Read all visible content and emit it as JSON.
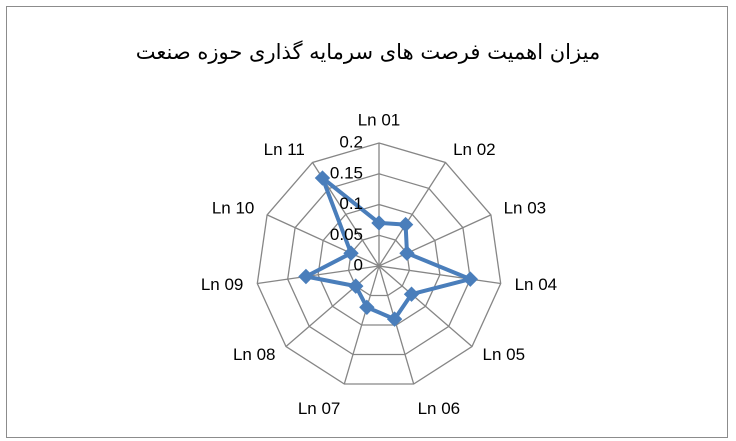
{
  "chart_data": {
    "type": "radar",
    "title": "میزان اهمیت فرصت های سرمایه گذاری حوزه صنعت",
    "categories": [
      "Ln 01",
      "Ln 02",
      "Ln 03",
      "Ln 04",
      "Ln 05",
      "Ln 06",
      "Ln 07",
      "Ln 08",
      "Ln 09",
      "Ln 10",
      "Ln 11"
    ],
    "series": [
      {
        "values": [
          0.07,
          0.08,
          0.05,
          0.15,
          0.07,
          0.09,
          0.07,
          0.05,
          0.12,
          0.05,
          0.17
        ]
      }
    ],
    "radial_ticks": [
      "0",
      "0.05",
      "0.1",
      "0.15",
      "0.2"
    ],
    "rmax": 0.2,
    "legend": "none",
    "grid": true,
    "colors": {
      "series": "#4a7ebb",
      "grid": "#868686"
    }
  }
}
